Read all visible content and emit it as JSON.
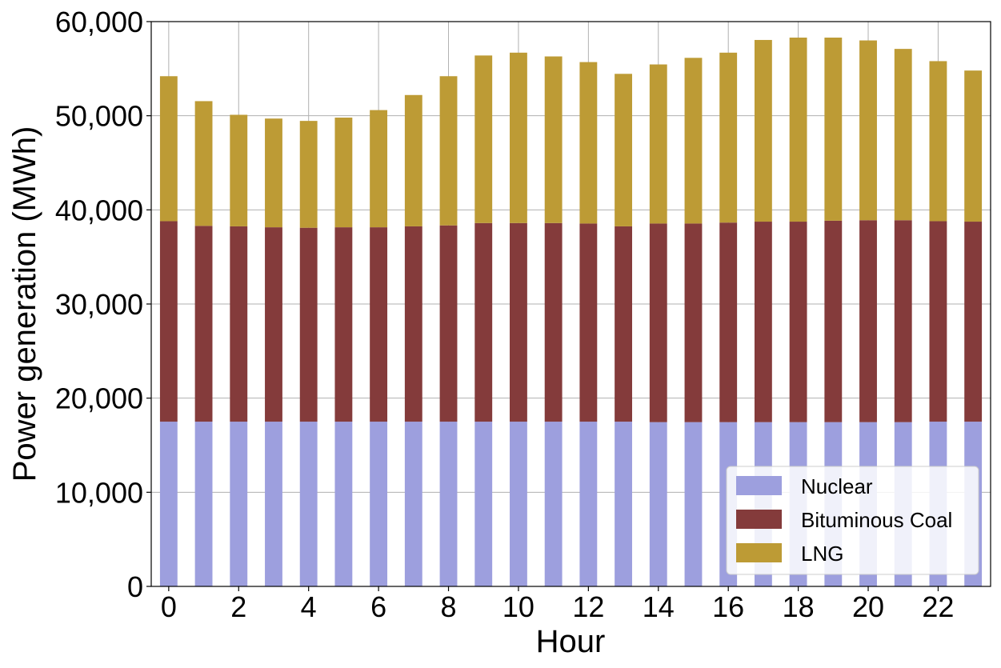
{
  "chart_data": {
    "type": "bar",
    "stacked": true,
    "categories": [
      0,
      1,
      2,
      3,
      4,
      5,
      6,
      7,
      8,
      9,
      10,
      11,
      12,
      13,
      14,
      15,
      16,
      17,
      18,
      19,
      20,
      21,
      22,
      23
    ],
    "x_ticks": [
      "0",
      "2",
      "4",
      "6",
      "8",
      "10",
      "12",
      "14",
      "16",
      "18",
      "20",
      "22"
    ],
    "y_ticks": [
      "0",
      "10,000",
      "20,000",
      "30,000",
      "40,000",
      "50,000",
      "60,000"
    ],
    "y_tick_values": [
      0,
      10000,
      20000,
      30000,
      40000,
      50000,
      60000
    ],
    "ylim": [
      0,
      60000
    ],
    "xlabel": "Hour",
    "ylabel": "Power generation (MWh)",
    "grid": true,
    "legend_position": "lower-right",
    "series": [
      {
        "name": "Nuclear",
        "color": "#9d9fde",
        "values": [
          17500,
          17500,
          17500,
          17500,
          17500,
          17500,
          17500,
          17500,
          17500,
          17500,
          17500,
          17500,
          17500,
          17500,
          17450,
          17450,
          17450,
          17450,
          17450,
          17450,
          17450,
          17450,
          17500,
          17500
        ]
      },
      {
        "name": "Bituminous Coal",
        "color": "#843b3b",
        "values": [
          21300,
          20800,
          20750,
          20650,
          20600,
          20650,
          20650,
          20750,
          20850,
          21100,
          21100,
          21100,
          21050,
          20750,
          21100,
          21100,
          21200,
          21300,
          21300,
          21400,
          21450,
          21450,
          21300,
          21250
        ]
      },
      {
        "name": "LNG",
        "color": "#bd9b35",
        "values": [
          15400,
          13250,
          11850,
          11550,
          11350,
          11650,
          12450,
          13950,
          15850,
          17800,
          18100,
          17700,
          17150,
          16200,
          16900,
          17600,
          18050,
          19300,
          19550,
          19450,
          19100,
          18200,
          17000,
          16050
        ]
      }
    ]
  }
}
